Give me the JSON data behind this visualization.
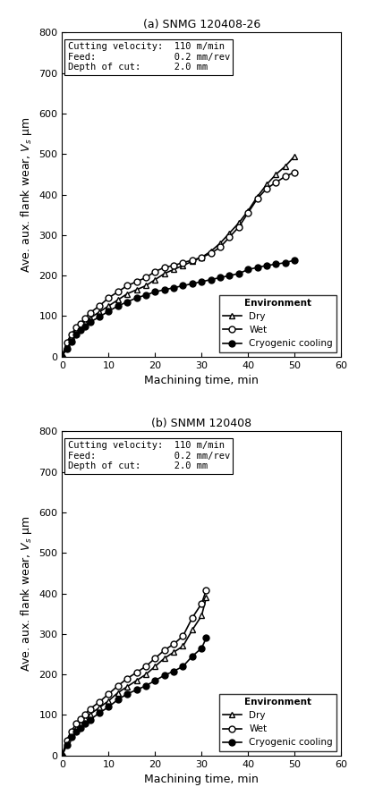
{
  "subplot_a": {
    "title": "(a) SNMG 120408-26",
    "params_text": "Cutting velocity:  110 m/min\nFeed:              0.2 mm/rev\nDepth of cut:      2.0 mm",
    "dry": {
      "x": [
        0,
        1,
        2,
        3,
        4,
        5,
        6,
        8,
        10,
        12,
        14,
        16,
        18,
        20,
        22,
        24,
        26,
        28,
        30,
        32,
        34,
        36,
        38,
        40,
        42,
        44,
        46,
        48,
        50
      ],
      "y": [
        0,
        30,
        50,
        65,
        75,
        85,
        95,
        110,
        125,
        140,
        155,
        165,
        175,
        190,
        205,
        215,
        225,
        235,
        245,
        260,
        280,
        305,
        330,
        360,
        395,
        425,
        450,
        470,
        495
      ]
    },
    "wet": {
      "x": [
        0,
        1,
        2,
        3,
        4,
        5,
        6,
        8,
        10,
        12,
        14,
        16,
        18,
        20,
        22,
        24,
        26,
        28,
        30,
        32,
        34,
        36,
        38,
        40,
        42,
        44,
        46,
        48,
        50
      ],
      "y": [
        0,
        35,
        55,
        72,
        82,
        95,
        108,
        125,
        145,
        160,
        175,
        185,
        195,
        210,
        220,
        225,
        232,
        238,
        245,
        255,
        270,
        295,
        320,
        355,
        390,
        415,
        430,
        445,
        455
      ]
    },
    "cryo": {
      "x": [
        0,
        1,
        2,
        3,
        4,
        5,
        6,
        8,
        10,
        12,
        14,
        16,
        18,
        20,
        22,
        24,
        26,
        28,
        30,
        32,
        34,
        36,
        38,
        40,
        42,
        44,
        46,
        48,
        50
      ],
      "y": [
        0,
        20,
        38,
        55,
        65,
        75,
        85,
        98,
        112,
        125,
        135,
        145,
        152,
        160,
        165,
        170,
        175,
        180,
        185,
        190,
        195,
        200,
        205,
        215,
        220,
        225,
        228,
        232,
        238
      ]
    },
    "xlim": [
      0,
      60
    ],
    "ylim": [
      0,
      800
    ],
    "xticks": [
      0,
      10,
      20,
      30,
      40,
      50,
      60
    ],
    "yticks": [
      0,
      100,
      200,
      300,
      400,
      500,
      600,
      700,
      800
    ],
    "xlabel": "Machining time, min",
    "ylabel": "Ave. aux. flank wear, Vₛ μm"
  },
  "subplot_b": {
    "title": "(b) SNMM 120408",
    "params_text": "Cutting velocity:  110 m/min\nFeed:              0.2 mm/rev\nDepth of cut:      2.0 mm",
    "dry": {
      "x": [
        0,
        1,
        2,
        3,
        4,
        5,
        6,
        8,
        10,
        12,
        14,
        16,
        18,
        20,
        22,
        24,
        26,
        28,
        30,
        31
      ],
      "y": [
        0,
        30,
        52,
        68,
        80,
        92,
        102,
        118,
        135,
        155,
        170,
        185,
        200,
        220,
        240,
        255,
        270,
        310,
        345,
        390
      ]
    },
    "wet": {
      "x": [
        0,
        1,
        2,
        3,
        4,
        5,
        6,
        8,
        10,
        12,
        14,
        16,
        18,
        20,
        22,
        24,
        26,
        28,
        30,
        31
      ],
      "y": [
        0,
        38,
        60,
        78,
        90,
        102,
        115,
        132,
        152,
        172,
        190,
        205,
        220,
        240,
        260,
        275,
        295,
        340,
        375,
        408
      ]
    },
    "cryo": {
      "x": [
        0,
        1,
        2,
        3,
        4,
        5,
        6,
        8,
        10,
        12,
        14,
        16,
        18,
        20,
        22,
        24,
        26,
        28,
        30,
        31
      ],
      "y": [
        0,
        25,
        45,
        58,
        68,
        78,
        88,
        105,
        120,
        138,
        152,
        162,
        172,
        185,
        198,
        208,
        220,
        245,
        265,
        290
      ]
    },
    "xlim": [
      0,
      60
    ],
    "ylim": [
      0,
      800
    ],
    "xticks": [
      0,
      10,
      20,
      30,
      40,
      50,
      60
    ],
    "yticks": [
      0,
      100,
      200,
      300,
      400,
      500,
      600,
      700,
      800
    ],
    "xlabel": "Machining time, min",
    "ylabel": "Ave. aux. flank wear, Vₛ μm"
  },
  "legend_title": "Environment",
  "legend_entries": [
    "Dry",
    "Wet",
    "Cryogenic cooling"
  ],
  "line_color": "#000000",
  "marker_dry": "^",
  "marker_wet": "o",
  "marker_cryo_filled": "o",
  "markersize": 5,
  "linewidth": 1.2,
  "params_fontsize": 7.5,
  "label_fontsize": 9,
  "tick_fontsize": 8,
  "legend_fontsize": 7.5,
  "title_fontsize": 9
}
